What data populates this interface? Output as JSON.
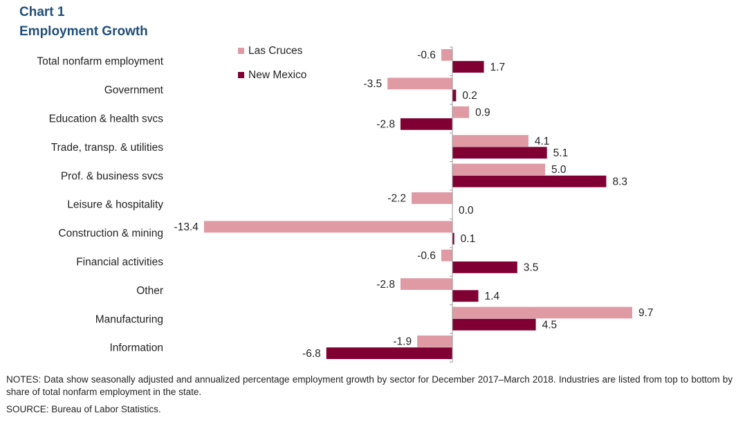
{
  "title_line1": "Chart 1",
  "title_line2": "Employment  Growth",
  "notes": "NOTES:  Data show seasonally adjusted and annualized percentage employment  growth by sector for December 2017–March 2018. Industries are listed from top to bottom by share of total nonfarm employment  in the state.",
  "source": "SOURCE:  Bureau of Labor Statistics.",
  "chart_data": {
    "type": "bar",
    "orientation": "horizontal",
    "categories": [
      "Total nonfarm employment",
      "Government",
      "Education & health svcs",
      "Trade, transp. & utilities",
      "Prof. & business svcs",
      "Leisure & hospitality",
      "Construction & mining",
      "Financial activities",
      "Other",
      "Manufacturing",
      "Information"
    ],
    "series": [
      {
        "name": "Las Cruces",
        "color": "#df9aa4",
        "values": [
          -0.6,
          -3.5,
          0.9,
          4.1,
          5.0,
          -2.2,
          -13.4,
          -0.6,
          -2.8,
          9.7,
          -1.9
        ],
        "labels": [
          "-0.6",
          "-3.5",
          "0.9",
          "4.1",
          "5.0",
          "-2.2",
          "-13.4",
          "-0.6",
          "-2.8",
          "9.7",
          "-1.9"
        ]
      },
      {
        "name": "New Mexico",
        "color": "#800033",
        "values": [
          1.7,
          0.2,
          -2.8,
          5.1,
          8.3,
          0.0,
          0.1,
          3.5,
          1.4,
          4.5,
          -6.8
        ],
        "labels": [
          "1.7",
          "0.2",
          "-2.8",
          "5.1",
          "8.3",
          "0.0",
          "0.1",
          "3.5",
          "1.4",
          "4.5",
          "-6.8"
        ]
      }
    ],
    "xlim": [
      -15,
      15
    ],
    "legend": "top-left of plot area"
  }
}
